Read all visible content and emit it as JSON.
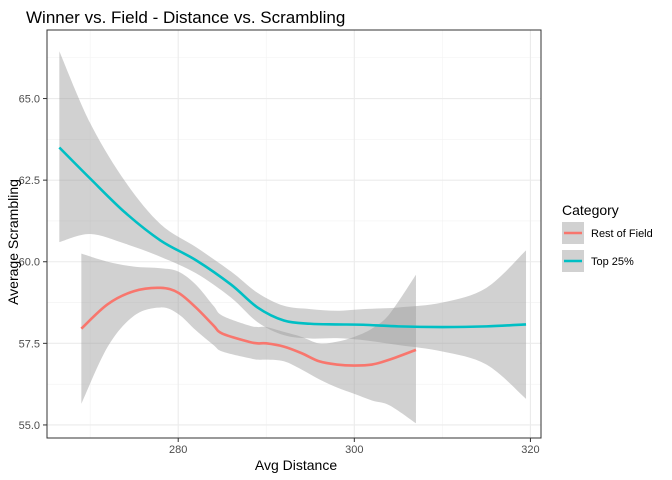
{
  "chart_data": {
    "type": "line",
    "title": "Winner vs. Field - Distance vs. Scrambling",
    "xlabel": "Avg Distance",
    "ylabel": "Average Scrambling",
    "xlim": [
      265.1,
      321.2
    ],
    "ylim": [
      54.6,
      67.1
    ],
    "xticks": [
      280,
      300,
      320
    ],
    "yticks": [
      55.0,
      57.5,
      60.0,
      62.5,
      65.0
    ],
    "ytick_labels": [
      "55.0",
      "57.5",
      "60.0",
      "62.5",
      "65.0"
    ],
    "grid": true,
    "legend": {
      "title": "Category",
      "position": "right"
    },
    "series": [
      {
        "name": "Rest of Field",
        "color": "#F8766D",
        "x": [
          269,
          272,
          275,
          278,
          280,
          282,
          284,
          285,
          288,
          289,
          290,
          292,
          294,
          296,
          298,
          300,
          302,
          304,
          307
        ],
        "y": [
          57.95,
          58.7,
          59.1,
          59.2,
          59.05,
          58.6,
          58.05,
          57.8,
          57.55,
          57.5,
          57.5,
          57.4,
          57.2,
          56.95,
          56.85,
          56.82,
          56.85,
          57.0,
          57.3
        ],
        "ci_upper": [
          60.25,
          60.0,
          59.85,
          59.8,
          59.7,
          59.3,
          58.65,
          58.35,
          58.05,
          58.0,
          58.0,
          57.85,
          57.7,
          57.5,
          57.55,
          57.7,
          57.95,
          58.4,
          59.6
        ],
        "ci_lower": [
          55.65,
          57.4,
          58.35,
          58.6,
          58.4,
          57.9,
          57.45,
          57.25,
          57.05,
          57.0,
          57.0,
          56.95,
          56.7,
          56.4,
          56.15,
          55.95,
          55.75,
          55.6,
          55.05
        ]
      },
      {
        "name": "Top 25%",
        "color": "#00BFC4",
        "x": [
          266.5,
          270,
          274,
          278,
          282,
          286,
          289,
          292,
          295,
          298,
          301,
          305,
          310,
          315,
          319.5
        ],
        "y": [
          63.5,
          62.55,
          61.5,
          60.65,
          60.05,
          59.3,
          58.6,
          58.2,
          58.1,
          58.08,
          58.07,
          58.02,
          58.0,
          58.02,
          58.08
        ],
        "ci_upper": [
          66.45,
          64.25,
          62.45,
          61.15,
          60.45,
          59.7,
          59.05,
          58.65,
          58.55,
          58.5,
          58.55,
          58.6,
          58.75,
          59.2,
          60.35
        ],
        "ci_lower": [
          60.6,
          60.85,
          60.55,
          60.15,
          59.65,
          58.9,
          58.15,
          57.75,
          57.65,
          57.66,
          57.6,
          57.45,
          57.25,
          56.85,
          55.8
        ]
      }
    ],
    "ribbon_color": "#999999"
  }
}
